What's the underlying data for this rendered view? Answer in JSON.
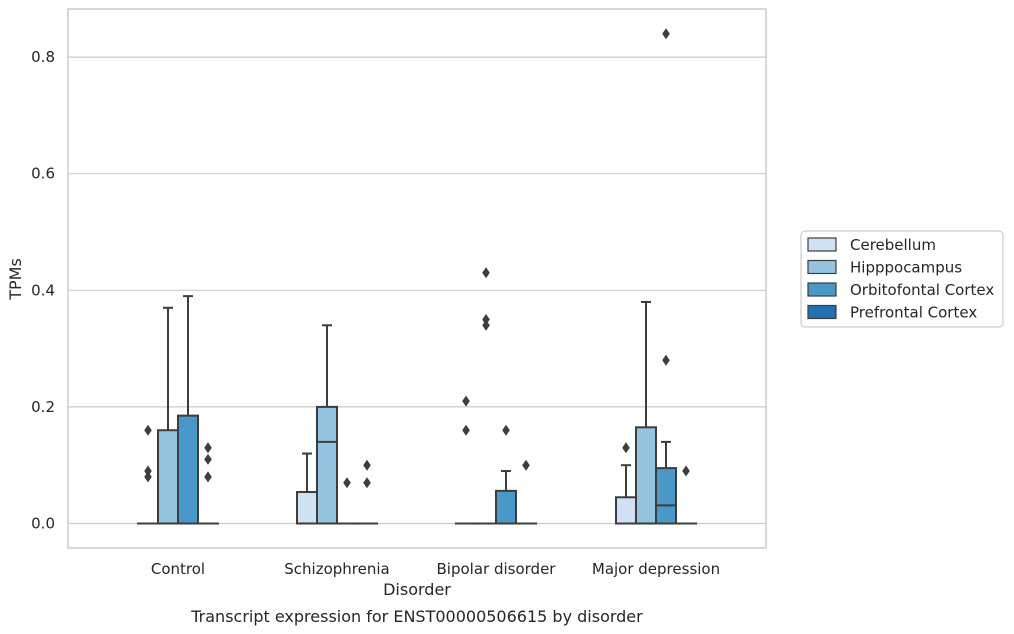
{
  "chart_data": {
    "type": "boxplot",
    "title": "",
    "caption": "Transcript expression for ENST00000506615 by disorder",
    "xlabel": "Disorder",
    "ylabel": "TPMs",
    "ylim": [
      -0.04,
      0.88
    ],
    "yticks": [
      "0.0",
      "0.2",
      "0.4",
      "0.6",
      "0.8"
    ],
    "ytick_values": [
      0,
      0.2,
      0.4,
      0.6,
      0.8
    ],
    "grid": true,
    "legend_position": "right",
    "categories": [
      "Control",
      "Schizophrenia",
      "Bipolar disorder",
      "Major depression"
    ],
    "series": [
      {
        "name": "Cerebellum",
        "color": "#d0e1f2",
        "boxes": [
          {
            "q1": 0,
            "median": 0,
            "q3": 0,
            "whisker_low": 0,
            "whisker_high": 0,
            "outliers": [
              0.16,
              0.09,
              0.08
            ]
          },
          {
            "q1": 0,
            "median": 0,
            "q3": 0.054,
            "whisker_low": 0,
            "whisker_high": 0.12,
            "outliers": []
          },
          {
            "q1": 0,
            "median": 0,
            "q3": 0,
            "whisker_low": 0,
            "whisker_high": 0,
            "outliers": [
              0.21,
              0.16
            ]
          },
          {
            "q1": 0,
            "median": 0,
            "q3": 0.045,
            "whisker_low": 0,
            "whisker_high": 0.1,
            "outliers": [
              0.13
            ]
          }
        ]
      },
      {
        "name": "Hipppocampus",
        "color": "#94c4df",
        "boxes": [
          {
            "q1": 0,
            "median": 0,
            "q3": 0.16,
            "whisker_low": 0,
            "whisker_high": 0.37,
            "outliers": []
          },
          {
            "q1": 0,
            "median": 0.14,
            "q3": 0.2,
            "whisker_low": 0,
            "whisker_high": 0.34,
            "outliers": []
          },
          {
            "q1": 0,
            "median": 0,
            "q3": 0,
            "whisker_low": 0,
            "whisker_high": 0,
            "outliers": [
              0.43,
              0.35,
              0.34
            ]
          },
          {
            "q1": 0,
            "median": 0,
            "q3": 0.165,
            "whisker_low": 0,
            "whisker_high": 0.38,
            "outliers": []
          }
        ]
      },
      {
        "name": "Orbitofontal Cortex",
        "color": "#4a98c9",
        "boxes": [
          {
            "q1": 0,
            "median": 0,
            "q3": 0.185,
            "whisker_low": 0,
            "whisker_high": 0.39,
            "outliers": []
          },
          {
            "q1": 0,
            "median": 0,
            "q3": 0,
            "whisker_low": 0,
            "whisker_high": 0,
            "outliers": [
              0.07
            ]
          },
          {
            "q1": 0,
            "median": 0,
            "q3": 0.056,
            "whisker_low": 0,
            "whisker_high": 0.09,
            "outliers": [
              0.16
            ]
          },
          {
            "q1": 0,
            "median": 0.031,
            "q3": 0.095,
            "whisker_low": 0,
            "whisker_high": 0.14,
            "outliers": [
              0.84,
              0.28
            ]
          }
        ]
      },
      {
        "name": "Prefrontal Cortex",
        "color": "#2171b5",
        "boxes": [
          {
            "q1": 0,
            "median": 0,
            "q3": 0,
            "whisker_low": 0,
            "whisker_high": 0,
            "outliers": [
              0.13,
              0.11,
              0.08
            ]
          },
          {
            "q1": 0,
            "median": 0,
            "q3": 0,
            "whisker_low": 0,
            "whisker_high": 0,
            "outliers": [
              0.1,
              0.07
            ]
          },
          {
            "q1": 0,
            "median": 0,
            "q3": 0,
            "whisker_low": 0,
            "whisker_high": 0,
            "outliers": [
              0.1
            ]
          },
          {
            "q1": 0,
            "median": 0,
            "q3": 0,
            "whisker_low": 0,
            "whisker_high": 0,
            "outliers": [
              0.09
            ]
          }
        ]
      }
    ]
  }
}
